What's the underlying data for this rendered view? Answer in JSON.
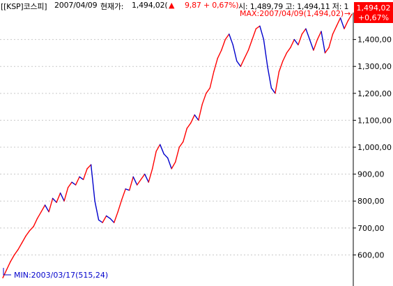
{
  "header": {
    "instrument": "[[KSP]코스피]",
    "date_text": "2007/04/09",
    "current_label": "현재가:",
    "current_value": "1,494,02(",
    "change_arrow": "▲",
    "change_text": "9,87 + 0,67%)",
    "rest_text": "시: 1,489,79 고: 1,494,11 저: 1"
  },
  "price_tag": {
    "price": "1,494,02",
    "percent": "+0,67%"
  },
  "annotations": {
    "max_label": "MAX:2007/04/09(1,494,02)",
    "max_arrow": "→",
    "min_label": "MIN:2003/03/17(515,24)"
  },
  "colors": {
    "up": "#ff0000",
    "down": "#0000cc",
    "axis": "#000000",
    "grid": "#c8c8c8",
    "tag_bg": "#ff0000"
  },
  "chart_data": {
    "type": "line",
    "title": "",
    "x_start": "2003/03/17",
    "x_end": "2007/04/09",
    "ylim": [
      495,
      1500
    ],
    "grid": true,
    "y_ticks": [
      600,
      700,
      800,
      900,
      1000,
      1100,
      1200,
      1300,
      1400
    ],
    "y_tick_labels": [
      "600,00",
      "700,00",
      "800,00",
      "900,00",
      "1,000,00",
      "1,100,00",
      "1,200,00",
      "1,300,00",
      "1,400,00"
    ],
    "series": [
      {
        "values": [
          515,
          545,
          575,
          600,
          620,
          645,
          670,
          690,
          705,
          735,
          760,
          785,
          760,
          810,
          795,
          830,
          800,
          850,
          870,
          860,
          890,
          880,
          920,
          935,
          800,
          730,
          720,
          745,
          735,
          720,
          760,
          805,
          845,
          840,
          890,
          860,
          880,
          900,
          870,
          920,
          985,
          1010,
          975,
          960,
          920,
          945,
          1000,
          1020,
          1070,
          1090,
          1120,
          1100,
          1160,
          1200,
          1220,
          1280,
          1330,
          1360,
          1400,
          1420,
          1380,
          1320,
          1300,
          1330,
          1360,
          1400,
          1440,
          1450,
          1400,
          1300,
          1220,
          1200,
          1280,
          1320,
          1350,
          1370,
          1400,
          1380,
          1420,
          1440,
          1400,
          1360,
          1400,
          1430,
          1350,
          1370,
          1420,
          1450,
          1480,
          1440,
          1470,
          1494
        ]
      }
    ],
    "max": {
      "date": "2007/04/09",
      "value": 1494.02
    },
    "min": {
      "date": "2003/03/17",
      "value": 515.24
    }
  }
}
